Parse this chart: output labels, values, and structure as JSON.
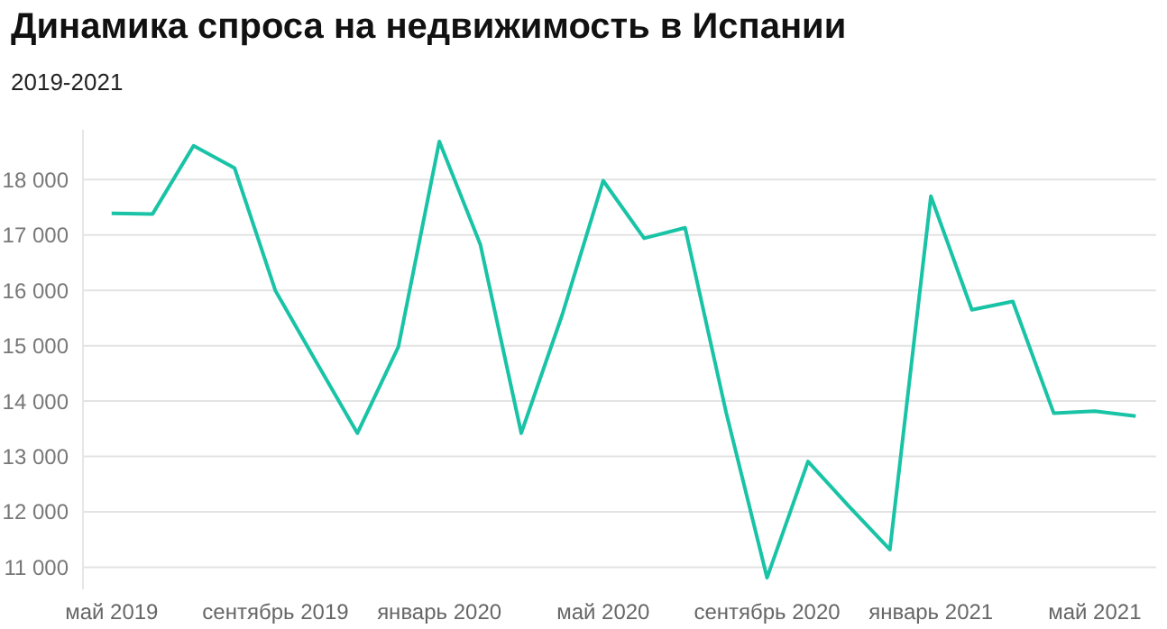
{
  "chart_data": {
    "type": "line",
    "title": "Динамика спроса на недвижимость в Испании",
    "subtitle": "2019-2021",
    "categories": [
      "май 2019",
      null,
      null,
      null,
      "сентябрь 2019",
      null,
      null,
      null,
      "январь 2020",
      null,
      null,
      null,
      "май 2020",
      null,
      null,
      null,
      "сентябрь 2020",
      null,
      null,
      null,
      "январь 2021",
      null,
      null,
      null,
      "май 2021",
      null
    ],
    "series": [
      {
        "color": "#19c3a6",
        "values": [
          17390,
          17380,
          18610,
          18210,
          15990,
          14700,
          13420,
          14980,
          18690,
          16830,
          13420,
          15560,
          17980,
          16940,
          17130,
          13800,
          10810,
          12910,
          12100,
          11320,
          17700,
          15650,
          15800,
          13780,
          13820,
          13730
        ]
      }
    ],
    "ylim": [
      10600,
      18900
    ],
    "yticks": [
      {
        "value": 11000,
        "label": "11 000"
      },
      {
        "value": 12000,
        "label": "12 000"
      },
      {
        "value": 13000,
        "label": "13 000"
      },
      {
        "value": 14000,
        "label": "14 000"
      },
      {
        "value": 15000,
        "label": "15 000"
      },
      {
        "value": 16000,
        "label": "16 000"
      },
      {
        "value": 17000,
        "label": "17 000"
      },
      {
        "value": 18000,
        "label": "18 000"
      }
    ],
    "grid": "y",
    "marker": "none",
    "line_style": "solid",
    "legend": false
  }
}
